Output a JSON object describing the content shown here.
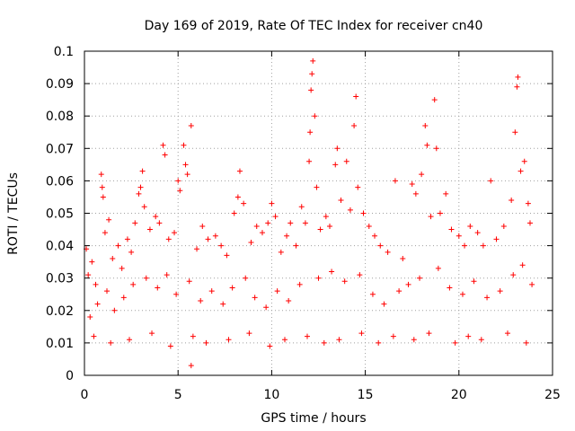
{
  "chart_data": {
    "type": "scatter",
    "title": "Day 169 of 2019, Rate Of TEC Index for receiver cn40",
    "xlabel": "GPS time / hours",
    "ylabel": "ROTI / TECUs",
    "xlim": [
      0,
      25
    ],
    "ylim": [
      0,
      0.1
    ],
    "xticks": [
      "0",
      "5",
      "10",
      "15",
      "20",
      "25"
    ],
    "yticks": [
      "0",
      "0.01",
      "0.02",
      "0.03",
      "0.04",
      "0.05",
      "0.06",
      "0.07",
      "0.08",
      "0.09",
      "0.1"
    ],
    "grid": true,
    "legend": "none",
    "marker": "plus",
    "color": "#ff0000",
    "series": [
      {
        "points": [
          [
            0.1,
            0.039
          ],
          [
            0.2,
            0.031
          ],
          [
            0.4,
            0.035
          ],
          [
            0.6,
            0.028
          ],
          [
            0.9,
            0.062
          ],
          [
            0.95,
            0.058
          ],
          [
            1.0,
            0.055
          ],
          [
            1.1,
            0.044
          ],
          [
            1.3,
            0.048
          ],
          [
            1.5,
            0.036
          ],
          [
            1.8,
            0.04
          ],
          [
            2.0,
            0.033
          ],
          [
            2.3,
            0.042
          ],
          [
            2.5,
            0.038
          ],
          [
            2.7,
            0.047
          ],
          [
            2.9,
            0.056
          ],
          [
            3.0,
            0.058
          ],
          [
            3.1,
            0.063
          ],
          [
            3.2,
            0.052
          ],
          [
            3.5,
            0.045
          ],
          [
            3.8,
            0.049
          ],
          [
            4.0,
            0.047
          ],
          [
            4.2,
            0.071
          ],
          [
            4.3,
            0.068
          ],
          [
            4.5,
            0.042
          ],
          [
            4.8,
            0.044
          ],
          [
            5.0,
            0.06
          ],
          [
            5.1,
            0.057
          ],
          [
            5.3,
            0.071
          ],
          [
            5.4,
            0.065
          ],
          [
            5.5,
            0.062
          ],
          [
            5.7,
            0.077
          ],
          [
            6.0,
            0.039
          ],
          [
            6.3,
            0.046
          ],
          [
            6.6,
            0.042
          ],
          [
            7.0,
            0.043
          ],
          [
            7.3,
            0.04
          ],
          [
            7.6,
            0.037
          ],
          [
            8.0,
            0.05
          ],
          [
            8.2,
            0.055
          ],
          [
            8.3,
            0.063
          ],
          [
            8.5,
            0.053
          ],
          [
            8.9,
            0.041
          ],
          [
            9.2,
            0.046
          ],
          [
            9.5,
            0.044
          ],
          [
            9.8,
            0.047
          ],
          [
            10.0,
            0.053
          ],
          [
            10.2,
            0.049
          ],
          [
            10.5,
            0.038
          ],
          [
            10.8,
            0.043
          ],
          [
            11.0,
            0.047
          ],
          [
            11.3,
            0.04
          ],
          [
            11.6,
            0.052
          ],
          [
            11.8,
            0.047
          ],
          [
            12.0,
            0.066
          ],
          [
            12.05,
            0.075
          ],
          [
            12.1,
            0.088
          ],
          [
            12.15,
            0.093
          ],
          [
            12.2,
            0.097
          ],
          [
            12.3,
            0.08
          ],
          [
            12.4,
            0.058
          ],
          [
            12.6,
            0.045
          ],
          [
            12.9,
            0.049
          ],
          [
            13.1,
            0.046
          ],
          [
            13.4,
            0.065
          ],
          [
            13.5,
            0.07
          ],
          [
            13.7,
            0.054
          ],
          [
            14.0,
            0.066
          ],
          [
            14.2,
            0.051
          ],
          [
            14.4,
            0.077
          ],
          [
            14.5,
            0.086
          ],
          [
            14.6,
            0.058
          ],
          [
            14.9,
            0.05
          ],
          [
            15.2,
            0.046
          ],
          [
            15.5,
            0.043
          ],
          [
            15.8,
            0.04
          ],
          [
            16.2,
            0.038
          ],
          [
            16.6,
            0.06
          ],
          [
            17.0,
            0.036
          ],
          [
            17.5,
            0.059
          ],
          [
            17.7,
            0.056
          ],
          [
            18.0,
            0.062
          ],
          [
            18.2,
            0.077
          ],
          [
            18.3,
            0.071
          ],
          [
            18.5,
            0.049
          ],
          [
            18.7,
            0.085
          ],
          [
            18.8,
            0.07
          ],
          [
            19.0,
            0.05
          ],
          [
            19.3,
            0.056
          ],
          [
            19.6,
            0.045
          ],
          [
            20.0,
            0.043
          ],
          [
            20.3,
            0.04
          ],
          [
            20.6,
            0.046
          ],
          [
            21.0,
            0.044
          ],
          [
            21.3,
            0.04
          ],
          [
            21.7,
            0.06
          ],
          [
            22.0,
            0.042
          ],
          [
            22.4,
            0.046
          ],
          [
            22.8,
            0.054
          ],
          [
            23.0,
            0.075
          ],
          [
            23.1,
            0.089
          ],
          [
            23.15,
            0.092
          ],
          [
            23.3,
            0.063
          ],
          [
            23.5,
            0.066
          ],
          [
            23.7,
            0.053
          ],
          [
            23.8,
            0.047
          ],
          [
            0.3,
            0.018
          ],
          [
            0.7,
            0.022
          ],
          [
            1.2,
            0.026
          ],
          [
            1.6,
            0.02
          ],
          [
            2.1,
            0.024
          ],
          [
            2.6,
            0.028
          ],
          [
            3.3,
            0.03
          ],
          [
            3.9,
            0.027
          ],
          [
            4.4,
            0.031
          ],
          [
            4.9,
            0.025
          ],
          [
            5.6,
            0.029
          ],
          [
            6.2,
            0.023
          ],
          [
            6.8,
            0.026
          ],
          [
            7.4,
            0.022
          ],
          [
            7.9,
            0.027
          ],
          [
            8.6,
            0.03
          ],
          [
            9.1,
            0.024
          ],
          [
            9.7,
            0.021
          ],
          [
            10.3,
            0.026
          ],
          [
            10.9,
            0.023
          ],
          [
            11.5,
            0.028
          ],
          [
            12.5,
            0.03
          ],
          [
            13.2,
            0.032
          ],
          [
            13.9,
            0.029
          ],
          [
            14.7,
            0.031
          ],
          [
            15.4,
            0.025
          ],
          [
            16.0,
            0.022
          ],
          [
            16.8,
            0.026
          ],
          [
            17.3,
            0.028
          ],
          [
            17.9,
            0.03
          ],
          [
            18.9,
            0.033
          ],
          [
            19.5,
            0.027
          ],
          [
            20.2,
            0.025
          ],
          [
            20.8,
            0.029
          ],
          [
            21.5,
            0.024
          ],
          [
            22.2,
            0.026
          ],
          [
            22.9,
            0.031
          ],
          [
            23.4,
            0.034
          ],
          [
            23.9,
            0.028
          ],
          [
            0.5,
            0.012
          ],
          [
            1.4,
            0.01
          ],
          [
            2.4,
            0.011
          ],
          [
            3.6,
            0.013
          ],
          [
            4.6,
            0.009
          ],
          [
            5.8,
            0.012
          ],
          [
            6.5,
            0.01
          ],
          [
            7.7,
            0.011
          ],
          [
            8.8,
            0.013
          ],
          [
            9.9,
            0.009
          ],
          [
            10.7,
            0.011
          ],
          [
            11.9,
            0.012
          ],
          [
            12.8,
            0.01
          ],
          [
            13.6,
            0.011
          ],
          [
            14.8,
            0.013
          ],
          [
            15.7,
            0.01
          ],
          [
            16.5,
            0.012
          ],
          [
            17.6,
            0.011
          ],
          [
            18.4,
            0.013
          ],
          [
            19.8,
            0.01
          ],
          [
            20.5,
            0.012
          ],
          [
            21.2,
            0.011
          ],
          [
            22.6,
            0.013
          ],
          [
            23.6,
            0.01
          ],
          [
            5.7,
            0.003
          ]
        ]
      }
    ]
  }
}
